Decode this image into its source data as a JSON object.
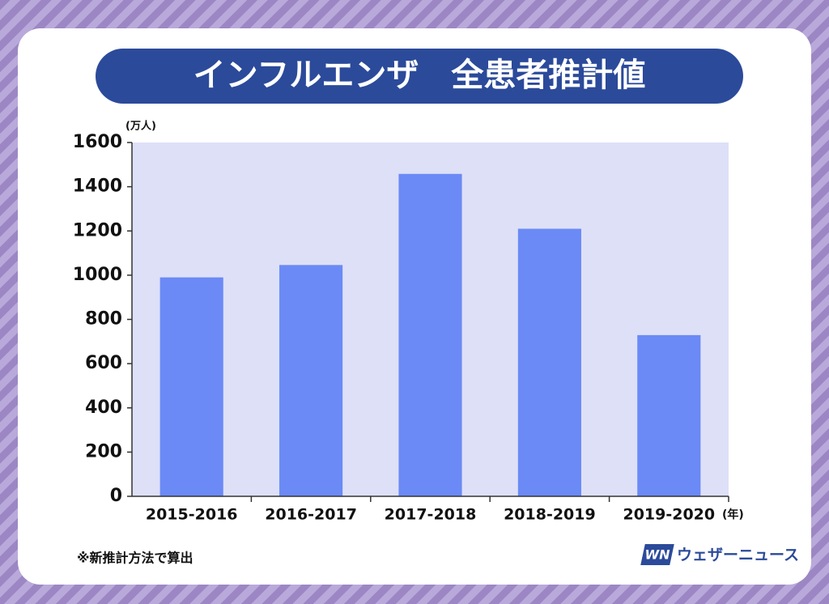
{
  "chart_data": {
    "type": "bar",
    "title": "インフルエンザ　全患者推計値",
    "y_unit": "(万人)",
    "x_unit": "(年)",
    "categories": [
      "2015-2016",
      "2016-2017",
      "2017-2018",
      "2018-2019",
      "2019-2020"
    ],
    "values": [
      990,
      1046,
      1458,
      1210,
      729
    ],
    "color": "#6b8af5",
    "ylim": [
      0,
      1600
    ],
    "yticks": [
      0,
      200,
      400,
      600,
      800,
      1000,
      1200,
      1400,
      1600
    ],
    "grid": false,
    "annotation": "※新推計方法で算出",
    "logo_mark": "WN",
    "source": "ウェザーニュース"
  }
}
